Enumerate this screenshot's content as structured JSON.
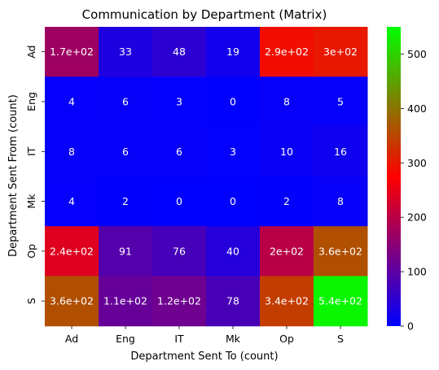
{
  "chart_data": {
    "type": "heatmap",
    "title": "Communication by Department (Matrix)",
    "xlabel": "Department Sent To (count)",
    "ylabel": "Department Sent From (count)",
    "x_categories": [
      "Ad",
      "Eng",
      "IT",
      "Mk",
      "Op",
      "S"
    ],
    "y_categories": [
      "Ad",
      "Eng",
      "IT",
      "Mk",
      "Op",
      "S"
    ],
    "values": [
      [
        170,
        33,
        48,
        19,
        290,
        300
      ],
      [
        4,
        6,
        3,
        0,
        8,
        5
      ],
      [
        8,
        6,
        6,
        3,
        10,
        16
      ],
      [
        4,
        2,
        0,
        0,
        2,
        8
      ],
      [
        240,
        91,
        76,
        40,
        200,
        360
      ],
      [
        360,
        110,
        120,
        78,
        340,
        540
      ]
    ],
    "cell_labels": [
      [
        "1.7e+02",
        "33",
        "48",
        "19",
        "2.9e+02",
        "3e+02"
      ],
      [
        "4",
        "6",
        "3",
        "0",
        "8",
        "5"
      ],
      [
        "8",
        "6",
        "6",
        "3",
        "10",
        "16"
      ],
      [
        "4",
        "2",
        "0",
        "0",
        "2",
        "8"
      ],
      [
        "2.4e+02",
        "91",
        "76",
        "40",
        "2e+02",
        "3.6e+02"
      ],
      [
        "3.6e+02",
        "1.1e+02",
        "1.2e+02",
        "78",
        "3.4e+02",
        "5.4e+02"
      ]
    ],
    "colorbar": {
      "min": 0,
      "max": 550,
      "ticks": [
        0,
        100,
        200,
        300,
        400,
        500
      ],
      "colormap": [
        "#0000ff",
        "#ff0000",
        "#00ff00"
      ]
    },
    "grid": false
  }
}
